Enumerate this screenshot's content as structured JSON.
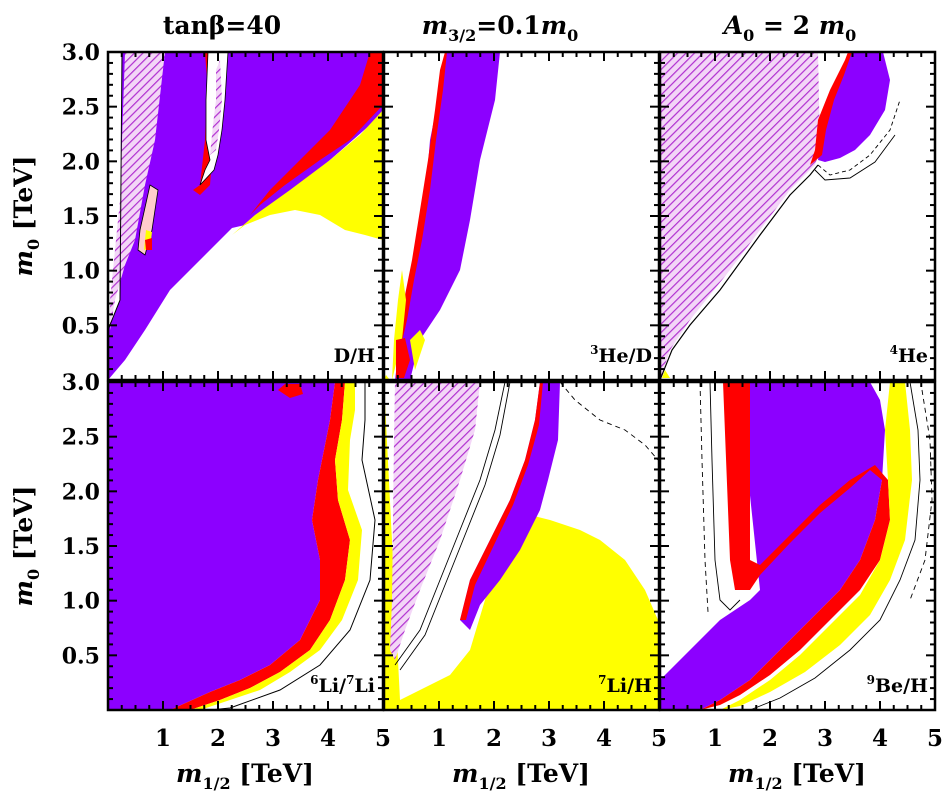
{
  "header": {
    "left": "tanβ=40",
    "middle_main": "m",
    "middle_sub": "3/2",
    "middle_rest": "=0.1",
    "middle_main2": "m",
    "middle_sub2": "0",
    "right_main": "A",
    "right_sub": "0",
    "right_rest": " = 2 ",
    "right_main2": "m",
    "right_sub2": "0"
  },
  "axes": {
    "xlabel_main": "m",
    "xlabel_sub": "1/2",
    "xlabel_unit": " [TeV]",
    "ylabel_main": "m",
    "ylabel_sub": "0",
    "ylabel_unit": " [TeV]",
    "xticks": [
      "1",
      "2",
      "3",
      "4",
      "5"
    ],
    "yticks": [
      "0.5",
      "1.0",
      "1.5",
      "2.0",
      "2.5",
      "3.0"
    ]
  },
  "colors": {
    "purple": "#8c00ff",
    "red": "#ff0000",
    "yellow": "#ffff00",
    "hatch": "#b030d0",
    "line": "#000000"
  },
  "chart_data": [
    {
      "type": "heatmap",
      "panel": "D/H",
      "label_sup": "",
      "label": "D/H",
      "xlim": [
        0,
        5
      ],
      "ylim": [
        0,
        3
      ],
      "xunit": "TeV",
      "yunit": "TeV"
    },
    {
      "type": "heatmap",
      "panel": "3He/D",
      "label_sup": "3",
      "label": "He/D",
      "xlim": [
        0,
        5
      ],
      "ylim": [
        0,
        3
      ]
    },
    {
      "type": "heatmap",
      "panel": "4He",
      "label_sup": "4",
      "label": "He",
      "xlim": [
        0,
        5
      ],
      "ylim": [
        0,
        3
      ]
    },
    {
      "type": "heatmap",
      "panel": "6Li/7Li",
      "label_sup": "6",
      "label": "Li/",
      "label_sup2": "7",
      "label2": "Li",
      "xlim": [
        0,
        5
      ],
      "ylim": [
        0,
        3
      ]
    },
    {
      "type": "heatmap",
      "panel": "7Li/H",
      "label_sup": "7",
      "label": "Li/H",
      "xlim": [
        0,
        5
      ],
      "ylim": [
        0,
        3
      ]
    },
    {
      "type": "heatmap",
      "panel": "9Be/H",
      "label_sup": "9",
      "label": "Be/H",
      "xlim": [
        0,
        5
      ],
      "ylim": [
        0,
        3
      ]
    }
  ]
}
